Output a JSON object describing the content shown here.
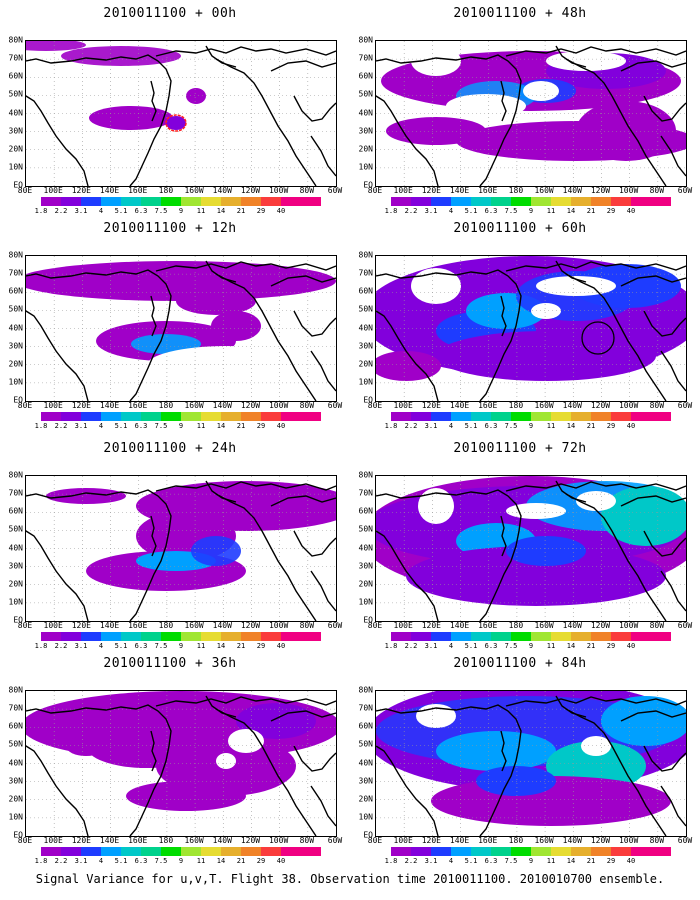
{
  "footer": "Signal Variance for u,v,T. Flight 38. Observation time 2010011100. 2010010700 ensemble.",
  "lat_labels": [
    "80N",
    "70N",
    "60N",
    "50N",
    "40N",
    "30N",
    "20N",
    "10N",
    "EQ"
  ],
  "lon_labels": [
    "80E",
    "100E",
    "120E",
    "140E",
    "160E",
    "180",
    "160W",
    "140W",
    "120W",
    "100W",
    "80W",
    "60W"
  ],
  "colorbar": {
    "labels": [
      "1.8",
      "2.2",
      "3.1",
      "4",
      "5.1",
      "6.3",
      "7.5",
      "9",
      "11",
      "14",
      "21",
      "29",
      "40"
    ],
    "colors": [
      "#a000c8",
      "#8200dc",
      "#1e3cff",
      "#00a0ff",
      "#00c8c8",
      "#00d28c",
      "#00dc00",
      "#a0e632",
      "#e6dc32",
      "#e6af2d",
      "#f08228",
      "#fa3c3c",
      "#f00082"
    ]
  },
  "panels": [
    {
      "title": "2010011100 + 00h"
    },
    {
      "title": "2010011100 + 48h"
    },
    {
      "title": "2010011100 + 12h"
    },
    {
      "title": "2010011100 + 60h"
    },
    {
      "title": "2010011100 + 24h"
    },
    {
      "title": "2010011100 + 72h"
    },
    {
      "title": "2010011100 + 36h"
    },
    {
      "title": "2010011100 + 84h"
    }
  ]
}
